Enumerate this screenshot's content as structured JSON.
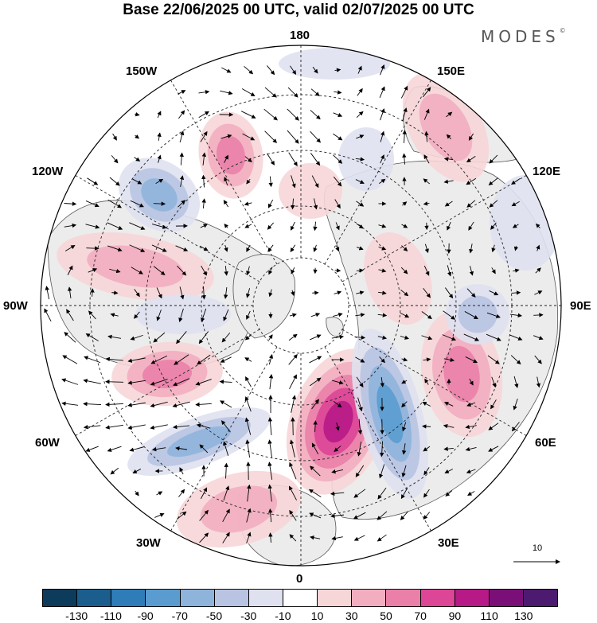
{
  "title": "Base 22/06/2025 00 UTC, valid 02/07/2025 00 UTC",
  "brand": {
    "text": "MODES",
    "mark": "©"
  },
  "longitude_labels": {
    "top": "180",
    "bottom": "0",
    "left": "90W",
    "right": "90E",
    "upper_left": "150W",
    "upper_right": "150E",
    "left_upper": "120W",
    "right_upper": "120E",
    "left_lower": "60W",
    "right_lower": "60E",
    "lower_left": "30W",
    "lower_right": "30E"
  },
  "reference_vector": {
    "label": "10"
  },
  "colorbar": {
    "colors": [
      "#0d3b5c",
      "#1b5e8e",
      "#2f7db8",
      "#5a9ccf",
      "#8fb4dc",
      "#b8c4e2",
      "#dfe1f0",
      "#ffffff",
      "#f7d6d8",
      "#f2aec0",
      "#ea7fa8",
      "#dd4597",
      "#b71a86",
      "#7a0f78",
      "#4c1a6e"
    ],
    "ticks": [
      "-130",
      "-110",
      "-90",
      "-70",
      "-50",
      "-30",
      "-10",
      "10",
      "30",
      "50",
      "70",
      "90",
      "110",
      "130"
    ]
  },
  "map": {
    "projection": "north-polar-stereographic",
    "land_color": "#ececec",
    "anomaly_field": [
      {
        "sign": "positive",
        "level": 90
      },
      {
        "sign": "negative",
        "level": -90
      }
    ]
  }
}
